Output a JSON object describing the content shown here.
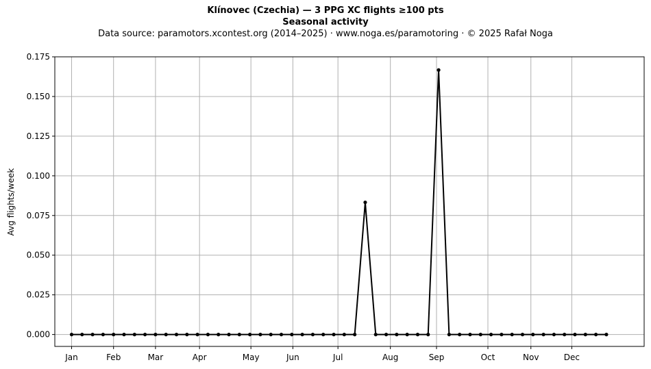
{
  "chart_data": {
    "type": "line",
    "title": "Klínovec (Czechia)  —  3 PPG XC flights ≥100 pts",
    "subtitle_bold": "Seasonal activity",
    "subtitle": "Data source: paramotors.xcontest.org (2014–2025)  ·  www.noga.es/paramotoring  ·  © 2025 Rafał Noga",
    "xlabel": "",
    "ylabel": "Avg flights/week",
    "ylim": [
      -0.0075,
      0.175
    ],
    "xlim": [
      -1.6,
      54.6
    ],
    "yticks": [
      0.0,
      0.025,
      0.05,
      0.075,
      0.1,
      0.125,
      0.15,
      0.175
    ],
    "ytick_labels": [
      "0.000",
      "0.025",
      "0.050",
      "0.075",
      "0.100",
      "0.125",
      "0.150",
      "0.175"
    ],
    "xticks": [
      0,
      4,
      8,
      12.2,
      17.1,
      21.1,
      25.4,
      30.4,
      34.8,
      39.7,
      43.8,
      47.7
    ],
    "xtick_labels": [
      "Jan",
      "Feb",
      "Mar",
      "Apr",
      "May",
      "Jun",
      "Jul",
      "Aug",
      "Sep",
      "Oct",
      "Nov",
      "Dec"
    ],
    "grid": true,
    "line_color": "#000000",
    "grid_color": "#b0b0b0",
    "series": [
      {
        "x": [
          0,
          1,
          2,
          3,
          4,
          5,
          6,
          7,
          8,
          9,
          10,
          11,
          12,
          13,
          14,
          15,
          16,
          17,
          18,
          19,
          20,
          21,
          22,
          23,
          24,
          25,
          26,
          27,
          28,
          29,
          30,
          31,
          32,
          33,
          34,
          35,
          36,
          37,
          38,
          39,
          40,
          41,
          42,
          43,
          44,
          45,
          46,
          47,
          48,
          49,
          50,
          51
        ],
        "values": [
          0,
          0,
          0,
          0,
          0,
          0,
          0,
          0,
          0,
          0,
          0,
          0,
          0,
          0,
          0,
          0,
          0,
          0,
          0,
          0,
          0,
          0,
          0,
          0,
          0,
          0,
          0,
          0,
          0.0833,
          0,
          0,
          0,
          0,
          0,
          0,
          0.1667,
          0,
          0,
          0,
          0,
          0,
          0,
          0,
          0,
          0,
          0,
          0,
          0,
          0,
          0,
          0,
          0
        ]
      }
    ]
  }
}
